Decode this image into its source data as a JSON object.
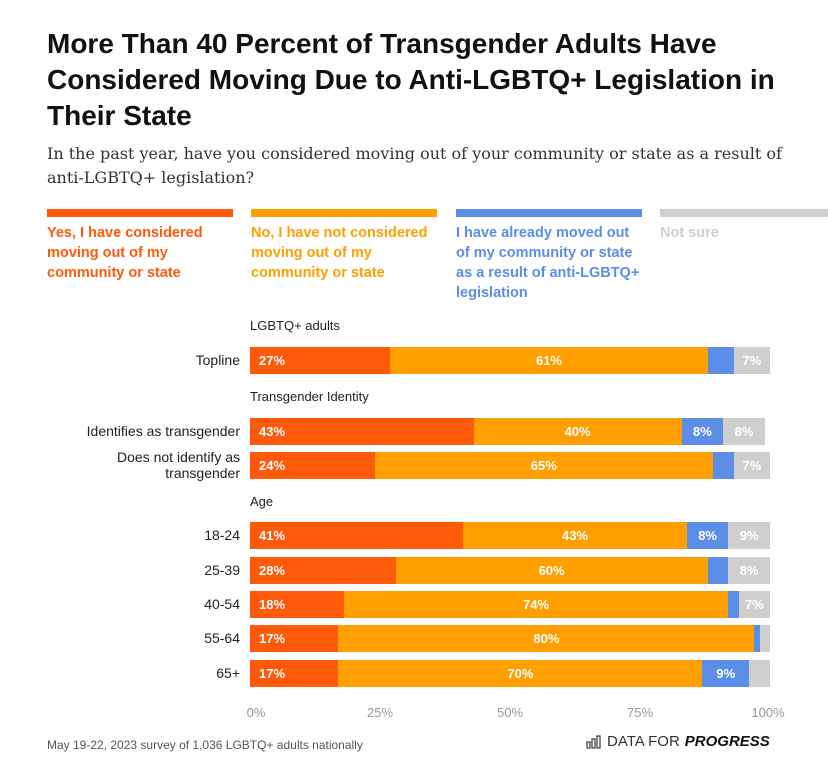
{
  "title": "More Than 40 Percent of Transgender Adults Have Considered Moving Due to Anti-LGBTQ+ Legislation in Their State",
  "subtitle": "In the past year, have you considered moving out of your community or state as a result of anti-LGBTQ+ legislation?",
  "footer": "May 19-22, 2023 survey of 1,036 LGBTQ+ adults nationally",
  "logo": {
    "text_a": "DATA FOR",
    "text_b": "PROGRESS",
    "icon": "bar-chart-icon"
  },
  "chart_data": {
    "type": "bar",
    "orientation": "horizontal",
    "stacked": true,
    "xlim": [
      0,
      100
    ],
    "xticks": [
      "0%",
      "25%",
      "50%",
      "75%",
      "100%"
    ],
    "legend_position": "top",
    "series": [
      {
        "name": "Yes, I have considered moving out of my community or state",
        "color": "#ff5a0a"
      },
      {
        "name": "No, I have not considered moving out of my community or state",
        "color": "#ffa000"
      },
      {
        "name": "I have already moved out of my community or state as a result of anti-LGBTQ+ legislation",
        "color": "#5b8ee6"
      },
      {
        "name": "Not sure",
        "color": "#cfcfcf"
      }
    ],
    "groups": [
      {
        "label": "LGBTQ+ adults",
        "rows": [
          {
            "label": "Topline",
            "values": [
              27,
              61,
              5,
              7
            ],
            "labels": [
              "27%",
              "61%",
              "",
              "7%"
            ]
          }
        ]
      },
      {
        "label": "Transgender Identity",
        "rows": [
          {
            "label": "Identifies as transgender",
            "values": [
              43,
              40,
              8,
              8
            ],
            "labels": [
              "43%",
              "40%",
              "8%",
              "8%"
            ]
          },
          {
            "label": "Does not identify as transgender",
            "values": [
              24,
              65,
              4,
              7
            ],
            "labels": [
              "24%",
              "65%",
              "",
              "7%"
            ]
          }
        ]
      },
      {
        "label": "Age",
        "rows": [
          {
            "label": "18-24",
            "values": [
              41,
              43,
              8,
              9
            ],
            "labels": [
              "41%",
              "43%",
              "8%",
              "9%"
            ]
          },
          {
            "label": "25-39",
            "values": [
              28,
              60,
              4,
              8
            ],
            "labels": [
              "28%",
              "60%",
              "",
              "8%"
            ]
          },
          {
            "label": "40-54",
            "values": [
              18,
              74,
              2,
              7
            ],
            "labels": [
              "18%",
              "74%",
              "",
              "7%"
            ]
          },
          {
            "label": "55-64",
            "values": [
              17,
              80,
              1,
              2
            ],
            "labels": [
              "17%",
              "80%",
              "",
              ""
            ]
          },
          {
            "label": "65+",
            "values": [
              17,
              70,
              9,
              4
            ],
            "labels": [
              "17%",
              "70%",
              "9%",
              ""
            ]
          }
        ]
      }
    ]
  }
}
